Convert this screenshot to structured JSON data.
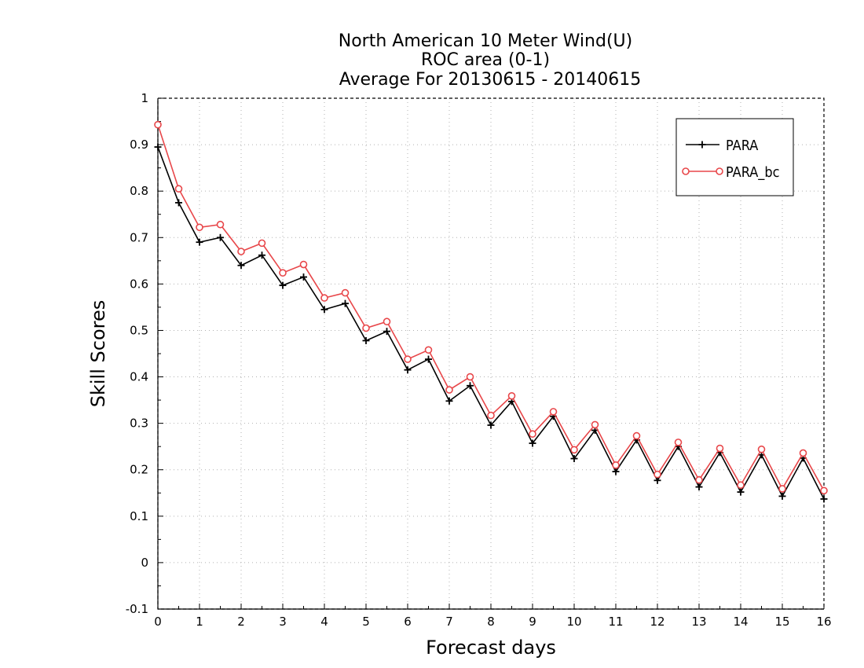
{
  "chart_data": {
    "type": "line",
    "title_lines": [
      "North American 10 Meter Wind(U)",
      "ROC area (0-1)",
      "Average For 20130615 - 20140615"
    ],
    "xlabel": "Forecast days",
    "ylabel": "Skill Scores",
    "xlim": [
      0,
      16
    ],
    "ylim": [
      -0.1,
      1
    ],
    "x_ticks": [
      0,
      1,
      2,
      3,
      4,
      5,
      6,
      7,
      8,
      9,
      10,
      11,
      12,
      13,
      14,
      15,
      16
    ],
    "y_ticks": [
      -0.1,
      0,
      0.1,
      0.2,
      0.3,
      0.4,
      0.5,
      0.6,
      0.7,
      0.8,
      0.9,
      1
    ],
    "y_tick_labels": [
      "-0.1",
      "0",
      "0.1",
      "0.2",
      "0.3",
      "0.4",
      "0.5",
      "0.6",
      "0.7",
      "0.8",
      "0.9",
      "1"
    ],
    "grid": true,
    "legend_position": "top-right",
    "x": [
      0,
      0.5,
      1,
      1.5,
      2,
      2.5,
      3,
      3.5,
      4,
      4.5,
      5,
      5.5,
      6,
      6.5,
      7,
      7.5,
      8,
      8.5,
      9,
      9.5,
      10,
      10.5,
      11,
      11.5,
      12,
      12.5,
      13,
      13.5,
      14,
      14.5,
      15,
      15.5,
      16
    ],
    "series": [
      {
        "name": "PARA",
        "color": "#000000",
        "marker": "plus",
        "values": [
          0.895,
          0.775,
          0.69,
          0.7,
          0.64,
          0.662,
          0.597,
          0.615,
          0.545,
          0.558,
          0.478,
          0.498,
          0.415,
          0.438,
          0.348,
          0.381,
          0.296,
          0.347,
          0.257,
          0.315,
          0.224,
          0.285,
          0.196,
          0.264,
          0.177,
          0.25,
          0.163,
          0.237,
          0.152,
          0.232,
          0.143,
          0.225,
          0.137
        ]
      },
      {
        "name": "PARA_bc",
        "color": "#e8474a",
        "marker": "circle",
        "values": [
          0.943,
          0.805,
          0.722,
          0.728,
          0.67,
          0.688,
          0.624,
          0.642,
          0.57,
          0.581,
          0.505,
          0.519,
          0.438,
          0.458,
          0.372,
          0.4,
          0.317,
          0.359,
          0.277,
          0.325,
          0.243,
          0.297,
          0.21,
          0.273,
          0.19,
          0.259,
          0.178,
          0.246,
          0.167,
          0.244,
          0.159,
          0.236,
          0.155
        ]
      }
    ]
  }
}
